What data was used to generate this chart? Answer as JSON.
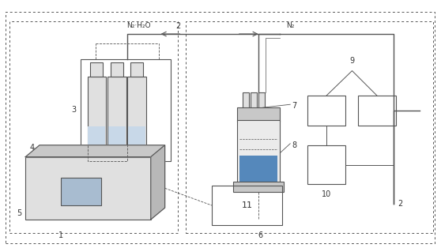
{
  "fig_width": 5.58,
  "fig_height": 3.14,
  "dpi": 100,
  "bg_color": "#ffffff",
  "line_color": "#555555",
  "text_color": "#333333",
  "light_gray": "#e0e0e0",
  "mid_gray": "#c8c8c8",
  "blue_fill": "#5588bb"
}
